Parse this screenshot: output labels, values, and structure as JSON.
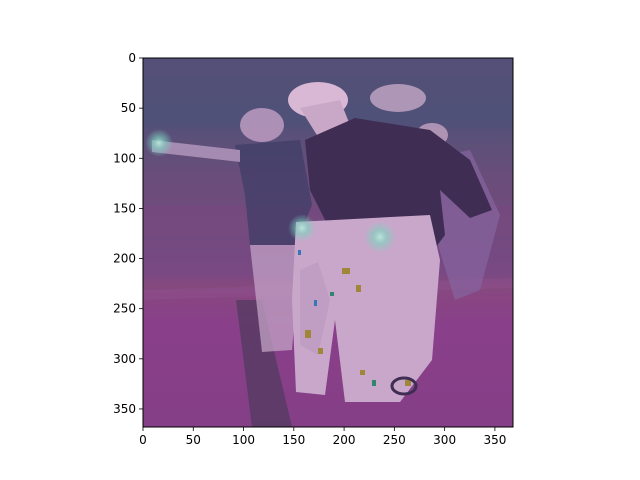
{
  "figure": {
    "image_content": "photo-overlay",
    "x_axis": {
      "ticks": [
        0,
        50,
        100,
        150,
        200,
        250,
        300,
        350
      ],
      "range": [
        0,
        368
      ]
    },
    "y_axis": {
      "ticks": [
        0,
        50,
        100,
        150,
        200,
        250,
        300,
        350
      ],
      "range": [
        0,
        368
      ],
      "inverted": true
    },
    "colors": {
      "frame": "#000000",
      "overlay": "#6b3f7d",
      "track": "#8b3f8e",
      "stands": "#4a4f78",
      "jacket": "#3b2c4f",
      "figure_light": "#d7b8d6",
      "hotspot": "#8ff3d4"
    }
  }
}
